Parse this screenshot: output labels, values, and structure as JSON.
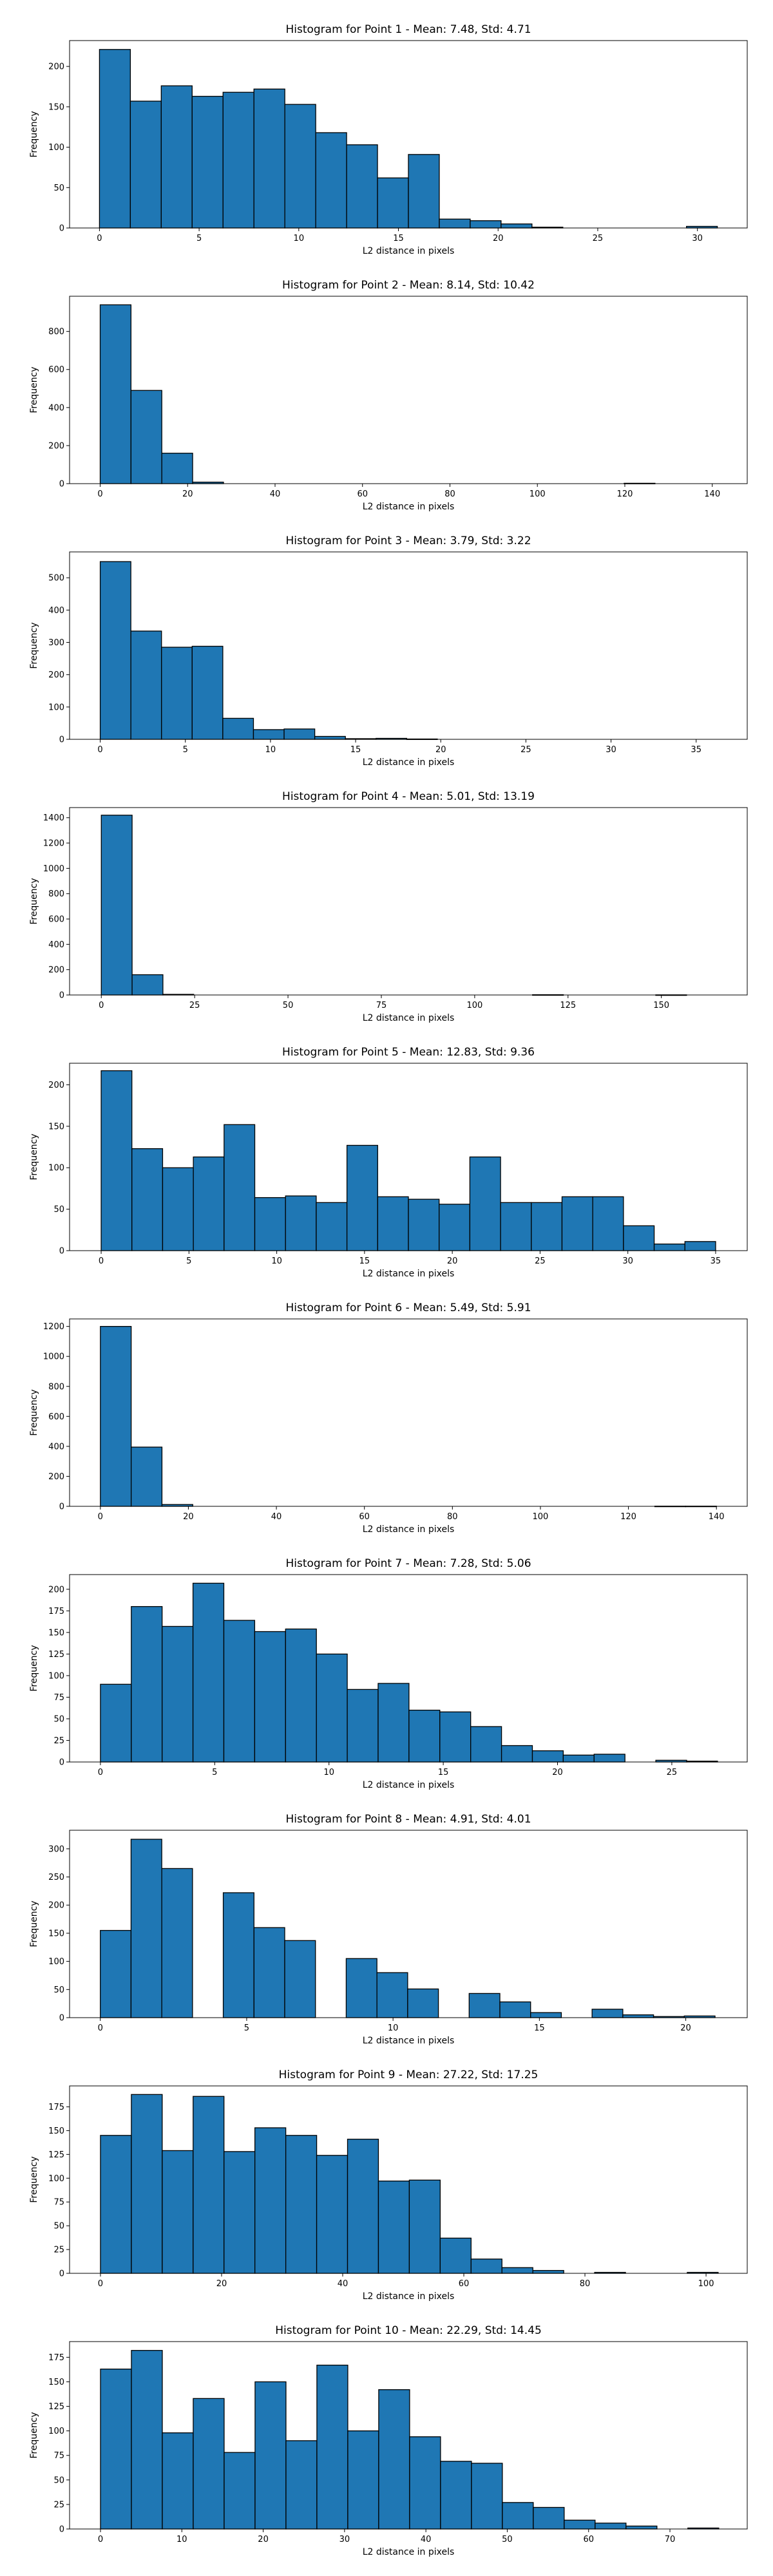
{
  "chart_data": [
    {
      "type": "bar",
      "title": "Histogram for Point 1 - Mean: 7.48, Std: 4.71",
      "xlabel": "L2 distance in pixels",
      "ylabel": "Frequency",
      "xlim": [
        -1.5,
        32.5
      ],
      "ylim": [
        0,
        232
      ],
      "xticks": [
        0,
        5,
        10,
        15,
        20,
        25,
        30
      ],
      "yticks": [
        0,
        50,
        100,
        150,
        200
      ],
      "bin_start": 0,
      "bin_width": 1.55,
      "values": [
        221,
        157,
        176,
        163,
        168,
        172,
        153,
        118,
        103,
        62,
        91,
        11,
        9,
        5,
        1,
        0,
        0,
        0,
        0,
        2
      ]
    },
    {
      "type": "bar",
      "title": "Histogram for Point 2 - Mean: 8.14, Std: 10.42",
      "xlabel": "L2 distance in pixels",
      "ylabel": "Frequency",
      "xlim": [
        -7,
        148
      ],
      "ylim": [
        0,
        985
      ],
      "xticks": [
        0,
        20,
        40,
        60,
        80,
        100,
        120,
        140
      ],
      "yticks": [
        0,
        200,
        400,
        600,
        800
      ],
      "bin_start": 0,
      "bin_width": 7.05,
      "values": [
        940,
        490,
        160,
        8,
        0,
        0,
        0,
        0,
        0,
        0,
        0,
        0,
        0,
        0,
        0,
        0,
        0,
        2,
        0,
        0
      ]
    },
    {
      "type": "bar",
      "title": "Histogram for Point 3 - Mean: 3.79, Std: 3.22",
      "xlabel": "L2 distance in pixels",
      "ylabel": "Frequency",
      "xlim": [
        -1.8,
        38
      ],
      "ylim": [
        0,
        580
      ],
      "xticks": [
        0,
        5,
        10,
        15,
        20,
        25,
        30,
        35
      ],
      "yticks": [
        0,
        100,
        200,
        300,
        400,
        500
      ],
      "bin_start": 0,
      "bin_width": 1.8,
      "values": [
        550,
        335,
        285,
        288,
        65,
        30,
        32,
        9,
        2,
        3,
        1,
        0,
        0,
        0,
        0,
        0,
        0,
        0,
        0,
        0
      ]
    },
    {
      "type": "bar",
      "title": "Histogram for Point 4 - Mean: 5.01, Std: 13.19",
      "xlabel": "L2 distance in pixels",
      "ylabel": "Frequency",
      "xlim": [
        -8.5,
        173
      ],
      "ylim": [
        0,
        1480
      ],
      "xticks": [
        0,
        25,
        50,
        75,
        100,
        125,
        150
      ],
      "yticks": [
        0,
        200,
        400,
        600,
        800,
        1000,
        1200,
        1400
      ],
      "bin_start": 0,
      "bin_width": 8.25,
      "values": [
        1420,
        160,
        5,
        0,
        0,
        0,
        0,
        0,
        0,
        0,
        0,
        0,
        0,
        0,
        2,
        0,
        0,
        0,
        1,
        0
      ]
    },
    {
      "type": "bar",
      "title": "Histogram for Point 5 - Mean: 12.83, Std: 9.36",
      "xlabel": "L2 distance in pixels",
      "ylabel": "Frequency",
      "xlim": [
        -1.8,
        36.8
      ],
      "ylim": [
        0,
        226
      ],
      "xticks": [
        0,
        5,
        10,
        15,
        20,
        25,
        30,
        35
      ],
      "yticks": [
        0,
        50,
        100,
        150,
        200
      ],
      "bin_start": 0,
      "bin_width": 1.75,
      "values": [
        217,
        123,
        100,
        113,
        152,
        64,
        66,
        58,
        127,
        65,
        62,
        56,
        113,
        58,
        58,
        65,
        65,
        30,
        8,
        11
      ]
    },
    {
      "type": "bar",
      "title": "Histogram for Point 6 - Mean: 5.49, Std: 5.91",
      "xlabel": "L2 distance in pixels",
      "ylabel": "Frequency",
      "xlim": [
        -7,
        147
      ],
      "ylim": [
        0,
        1250
      ],
      "xticks": [
        0,
        20,
        40,
        60,
        80,
        100,
        120,
        140
      ],
      "yticks": [
        0,
        200,
        400,
        600,
        800,
        1000,
        1200
      ],
      "bin_start": 0,
      "bin_width": 7,
      "values": [
        1200,
        395,
        12,
        0,
        0,
        0,
        0,
        0,
        0,
        0,
        0,
        0,
        0,
        0,
        0,
        0,
        0,
        0,
        1,
        1
      ]
    },
    {
      "type": "bar",
      "title": "Histogram for Point 7 - Mean: 7.28, Std: 5.06",
      "xlabel": "L2 distance in pixels",
      "ylabel": "Frequency",
      "xlim": [
        -1.35,
        28.3
      ],
      "ylim": [
        0,
        217
      ],
      "xticks": [
        0,
        5,
        10,
        15,
        20,
        25
      ],
      "yticks": [
        0,
        25,
        50,
        75,
        100,
        125,
        150,
        175,
        200
      ],
      "bin_start": 0,
      "bin_width": 1.35,
      "values": [
        90,
        180,
        157,
        207,
        164,
        151,
        154,
        125,
        84,
        91,
        60,
        58,
        41,
        19,
        13,
        8,
        9,
        0,
        2,
        1
      ]
    },
    {
      "type": "bar",
      "title": "Histogram for Point 8 - Mean: 4.91, Std: 4.01",
      "xlabel": "L2 distance in pixels",
      "ylabel": "Frequency",
      "xlim": [
        -1.05,
        22.1
      ],
      "ylim": [
        0,
        333
      ],
      "xticks": [
        0,
        5,
        10,
        15,
        20
      ],
      "yticks": [
        0,
        50,
        100,
        150,
        200,
        250,
        300
      ],
      "bin_start": 0,
      "bin_width": 1.05,
      "values": [
        155,
        317,
        265,
        0,
        222,
        160,
        137,
        0,
        105,
        80,
        51,
        0,
        43,
        28,
        9,
        0,
        15,
        5,
        2,
        3
      ]
    },
    {
      "type": "bar",
      "title": "Histogram for Point 9 - Mean: 27.22, Std: 17.25",
      "xlabel": "L2 distance in pixels",
      "ylabel": "Frequency",
      "xlim": [
        -5.1,
        106.8
      ],
      "ylim": [
        0,
        197
      ],
      "xticks": [
        0,
        20,
        40,
        60,
        80,
        100
      ],
      "yticks": [
        0,
        25,
        50,
        75,
        100,
        125,
        150,
        175
      ],
      "bin_start": 0,
      "bin_width": 5.1,
      "values": [
        145,
        188,
        129,
        186,
        128,
        153,
        145,
        124,
        141,
        97,
        98,
        37,
        15,
        6,
        3,
        0,
        1,
        0,
        0,
        1
      ]
    },
    {
      "type": "bar",
      "title": "Histogram for Point 10 - Mean: 22.29, Std: 14.45",
      "xlabel": "L2 distance in pixels",
      "ylabel": "Frequency",
      "xlim": [
        -3.8,
        79.5
      ],
      "ylim": [
        0,
        191
      ],
      "xticks": [
        0,
        10,
        20,
        30,
        40,
        50,
        60,
        70
      ],
      "yticks": [
        0,
        25,
        50,
        75,
        100,
        125,
        150,
        175
      ],
      "bin_start": 0,
      "bin_width": 3.8,
      "values": [
        163,
        182,
        98,
        133,
        78,
        150,
        90,
        167,
        100,
        142,
        94,
        69,
        67,
        27,
        22,
        9,
        6,
        3,
        0,
        1
      ]
    }
  ]
}
